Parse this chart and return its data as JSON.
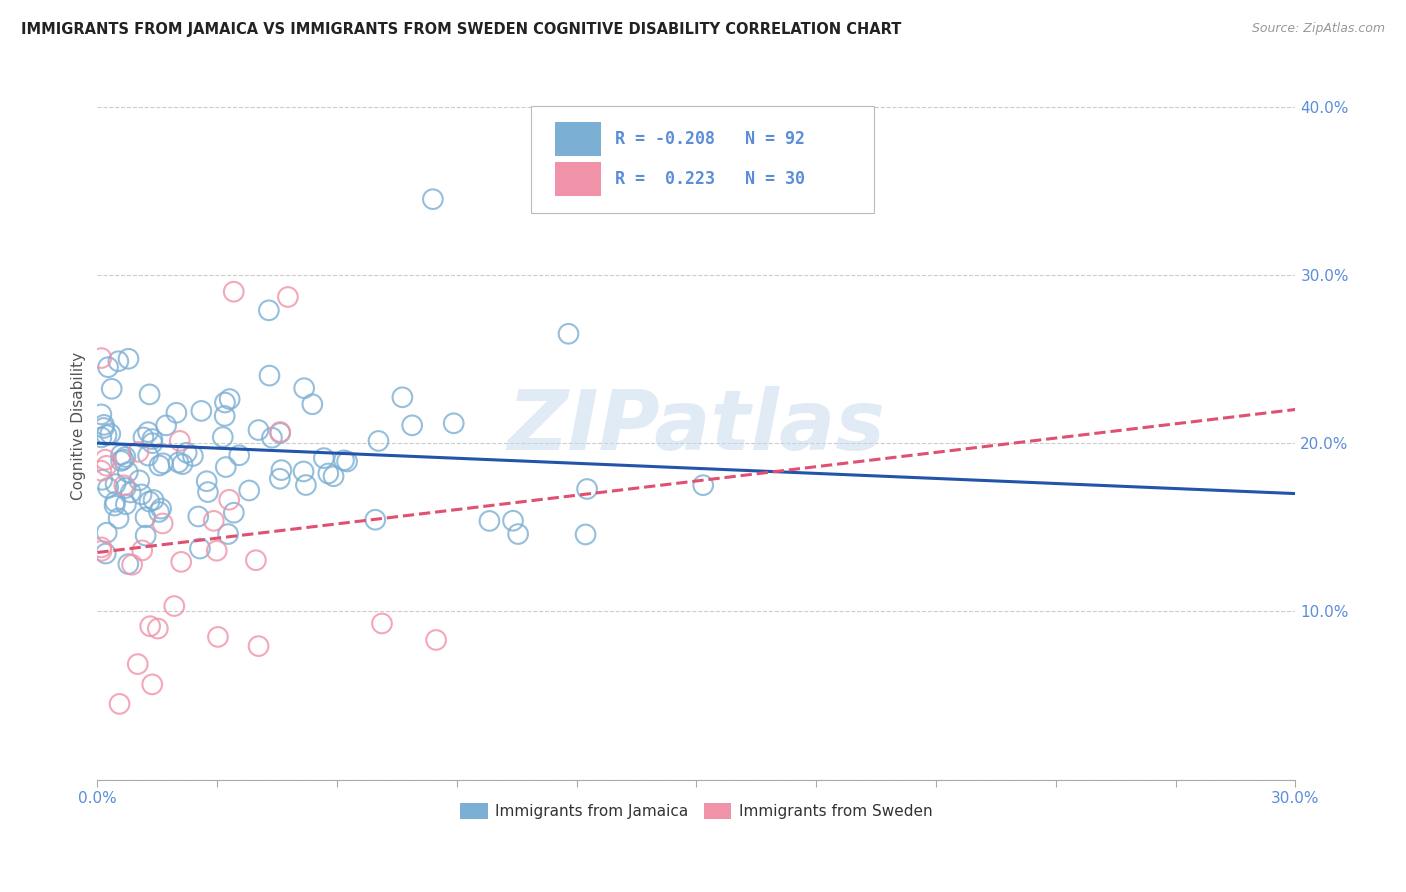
{
  "title": "IMMIGRANTS FROM JAMAICA VS IMMIGRANTS FROM SWEDEN COGNITIVE DISABILITY CORRELATION CHART",
  "source": "Source: ZipAtlas.com",
  "ylabel": "Cognitive Disability",
  "right_ytick_vals": [
    0.1,
    0.2,
    0.3,
    0.4
  ],
  "xlim": [
    0.0,
    0.3
  ],
  "ylim": [
    0.0,
    0.42
  ],
  "jamaica_color": "#7bafd4",
  "sweden_color": "#f093a8",
  "jamaica_line_color": "#2255aa",
  "sweden_line_color": "#e05070",
  "jamaica_R": -0.208,
  "jamaica_N": 92,
  "sweden_R": 0.223,
  "sweden_N": 30,
  "legend_label_jamaica": "Immigrants from Jamaica",
  "legend_label_sweden": "Immigrants from Sweden",
  "watermark": "ZIPatlas",
  "tick_color": "#5b8dd9"
}
